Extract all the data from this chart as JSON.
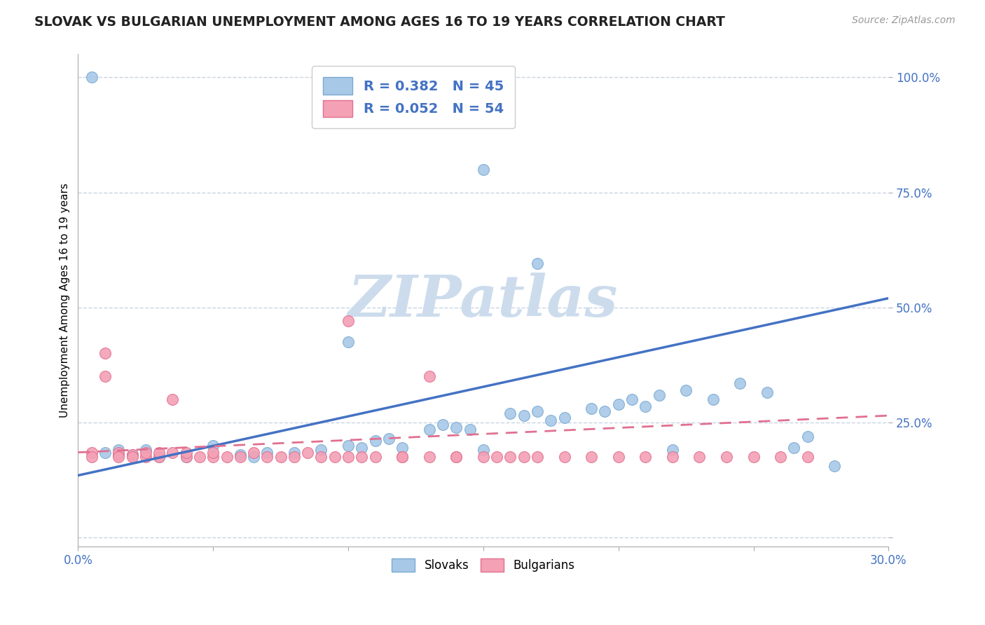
{
  "title": "SLOVAK VS BULGARIAN UNEMPLOYMENT AMONG AGES 16 TO 19 YEARS CORRELATION CHART",
  "source_text": "Source: ZipAtlas.com",
  "xlabel": "",
  "ylabel": "Unemployment Among Ages 16 to 19 years",
  "xlim": [
    0.0,
    0.3
  ],
  "ylim": [
    -0.02,
    1.05
  ],
  "xticks": [
    0.0,
    0.05,
    0.1,
    0.15,
    0.2,
    0.25,
    0.3
  ],
  "xticklabels": [
    "0.0%",
    "",
    "",
    "",
    "",
    "",
    "30.0%"
  ],
  "ytick_positions": [
    0.0,
    0.25,
    0.5,
    0.75,
    1.0
  ],
  "yticklabels": [
    "",
    "25.0%",
    "50.0%",
    "75.0%",
    "100.0%"
  ],
  "slovak_color": "#a8c8e8",
  "bulgarian_color": "#f4a0b5",
  "slovak_edge": "#7aaad0",
  "bulgarian_edge": "#e07090",
  "trend_slovak_color": "#4472c4",
  "trend_bulgarian_color": "#e07090",
  "R_slovak": 0.382,
  "N_slovak": 45,
  "R_bulgarian": 0.052,
  "N_bulgarian": 54,
  "watermark": "ZIPatlas",
  "watermark_color": "#ccdcec",
  "background_color": "#ffffff",
  "grid_color": "#c8d4e4",
  "slovak_trend_x0": 0.0,
  "slovak_trend_y0": 0.135,
  "slovak_trend_x1": 0.3,
  "slovak_trend_y1": 0.52,
  "bulgarian_trend_x0": 0.0,
  "bulgarian_trend_y0": 0.185,
  "bulgarian_trend_x1": 0.3,
  "bulgarian_trend_y1": 0.265,
  "slovak_points_x": [
    0.005,
    0.01,
    0.015,
    0.02,
    0.025,
    0.03,
    0.04,
    0.05,
    0.06,
    0.065,
    0.07,
    0.08,
    0.09,
    0.1,
    0.105,
    0.11,
    0.115,
    0.12,
    0.13,
    0.135,
    0.14,
    0.145,
    0.15,
    0.16,
    0.165,
    0.17,
    0.175,
    0.18,
    0.19,
    0.195,
    0.2,
    0.205,
    0.21,
    0.215,
    0.22,
    0.225,
    0.235,
    0.245,
    0.255,
    0.265,
    0.27,
    0.28,
    0.15,
    0.17,
    0.1
  ],
  "slovak_points_y": [
    1.0,
    0.185,
    0.19,
    0.18,
    0.19,
    0.175,
    0.175,
    0.2,
    0.18,
    0.175,
    0.185,
    0.185,
    0.19,
    0.2,
    0.195,
    0.21,
    0.215,
    0.195,
    0.235,
    0.245,
    0.24,
    0.235,
    0.19,
    0.27,
    0.265,
    0.275,
    0.255,
    0.26,
    0.28,
    0.275,
    0.29,
    0.3,
    0.285,
    0.31,
    0.19,
    0.32,
    0.3,
    0.335,
    0.315,
    0.195,
    0.22,
    0.155,
    0.8,
    0.595,
    0.425
  ],
  "bulgarian_points_x": [
    0.005,
    0.005,
    0.01,
    0.01,
    0.015,
    0.015,
    0.015,
    0.02,
    0.02,
    0.025,
    0.025,
    0.03,
    0.03,
    0.035,
    0.035,
    0.04,
    0.04,
    0.045,
    0.05,
    0.05,
    0.055,
    0.06,
    0.065,
    0.07,
    0.075,
    0.08,
    0.085,
    0.09,
    0.095,
    0.1,
    0.105,
    0.11,
    0.12,
    0.13,
    0.14,
    0.15,
    0.155,
    0.16,
    0.165,
    0.17,
    0.18,
    0.19,
    0.2,
    0.21,
    0.22,
    0.23,
    0.24,
    0.25,
    0.26,
    0.27,
    0.1,
    0.12,
    0.13,
    0.14
  ],
  "bulgarian_points_y": [
    0.185,
    0.175,
    0.35,
    0.4,
    0.18,
    0.185,
    0.175,
    0.18,
    0.175,
    0.175,
    0.185,
    0.175,
    0.185,
    0.3,
    0.185,
    0.175,
    0.185,
    0.175,
    0.175,
    0.185,
    0.175,
    0.175,
    0.185,
    0.175,
    0.175,
    0.175,
    0.185,
    0.175,
    0.175,
    0.175,
    0.175,
    0.175,
    0.175,
    0.175,
    0.175,
    0.175,
    0.175,
    0.175,
    0.175,
    0.175,
    0.175,
    0.175,
    0.175,
    0.175,
    0.175,
    0.175,
    0.175,
    0.175,
    0.175,
    0.175,
    0.47,
    0.175,
    0.35,
    0.175
  ]
}
